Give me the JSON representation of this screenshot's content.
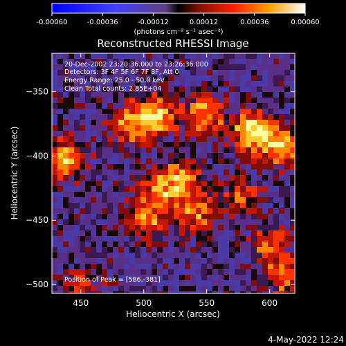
{
  "colorbar": {
    "ticks": [
      "-0.00060",
      "-0.00036",
      "-0.00012",
      "0.00012",
      "0.00036",
      "0.00060"
    ],
    "units_line": "(photons cm⁻² s⁻¹ asec⁻²)"
  },
  "chart_data": {
    "type": "heatmap",
    "title": "Reconstructed RHESSI Image",
    "xlabel": "Heliocentric X (arcsec)",
    "ylabel": "Heliocentric Y (arcsec)",
    "xlim": [
      427,
      620
    ],
    "ylim": [
      -507,
      -320
    ],
    "x_ticks": [
      "450",
      "500",
      "550",
      "600"
    ],
    "y_ticks": [
      "-350",
      "-400",
      "-450",
      "-500"
    ],
    "colorbar_range": [
      -0.0006,
      0.0006
    ],
    "annotations": [
      "20-Dec-2002 23:20:36.000 to 23:26:36.000",
      "Detectors: 3F 4F 5F 6F 7F 8F, Att 0",
      "Energy Range: 25.0 - 50.0 keV",
      "Clean     Total counts: 2.85E+04",
      "Position of Peak = [586,-381]"
    ],
    "peak_position": [
      586,
      -381
    ],
    "total_counts": 28500,
    "bright_sources": [
      {
        "x": 510,
        "y": -368,
        "intensity": 0.8
      },
      {
        "x": 488,
        "y": -375,
        "intensity": 0.65
      },
      {
        "x": 548,
        "y": -368,
        "intensity": 0.7
      },
      {
        "x": 586,
        "y": -381,
        "intensity": 1.0
      },
      {
        "x": 610,
        "y": -392,
        "intensity": 0.75
      },
      {
        "x": 437,
        "y": -402,
        "intensity": 0.75
      },
      {
        "x": 532,
        "y": -418,
        "intensity": 0.6
      },
      {
        "x": 512,
        "y": -425,
        "intensity": 0.55
      },
      {
        "x": 502,
        "y": -448,
        "intensity": 0.6
      },
      {
        "x": 540,
        "y": -445,
        "intensity": 0.55
      },
      {
        "x": 578,
        "y": -432,
        "intensity": 0.45
      },
      {
        "x": 600,
        "y": -470,
        "intensity": 0.5
      },
      {
        "x": 612,
        "y": -495,
        "intensity": 0.55
      },
      {
        "x": 450,
        "y": -500,
        "intensity": 0.35
      }
    ]
  },
  "footer": {
    "timestamp": "4-May-2022 12:24"
  }
}
